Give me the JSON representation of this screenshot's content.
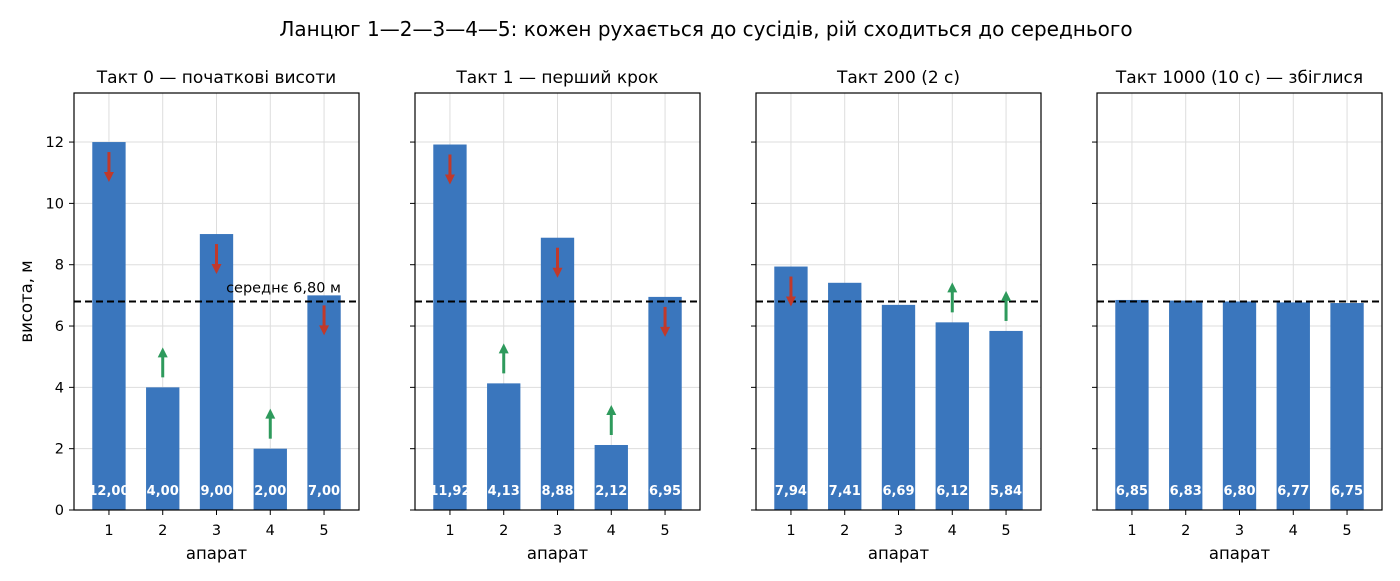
{
  "figure_title": "Ланцюг 1—2—3—4—5: кожен рухається до сусідів, рій сходиться до середнього",
  "colors": {
    "bar": "#3a76bd",
    "up_arrow": "#2e9a5c",
    "down_arrow": "#c0392b",
    "grid": "#dddddd",
    "mean_line": "#000000"
  },
  "chart_data": [
    {
      "type": "bar",
      "title": "Такт 0 — початкові висоти",
      "categories": [
        "1",
        "2",
        "3",
        "4",
        "5"
      ],
      "values": [
        12.0,
        4.0,
        9.0,
        2.0,
        7.0
      ],
      "value_labels": [
        "12,00",
        "4,00",
        "9,00",
        "2,00",
        "7,00"
      ],
      "arrows": [
        "down",
        "up",
        "down",
        "up",
        "down"
      ],
      "xlabel": "апарат",
      "ylabel": "висота, м",
      "ylim": [
        0,
        13.6
      ],
      "yticks": [
        0,
        2,
        4,
        6,
        8,
        10,
        12
      ],
      "mean": 6.8,
      "mean_label": "середнє 6,80 м",
      "grid": true
    },
    {
      "type": "bar",
      "title": "Такт 1 — перший крок",
      "categories": [
        "1",
        "2",
        "3",
        "4",
        "5"
      ],
      "values": [
        11.92,
        4.13,
        8.88,
        2.12,
        6.95
      ],
      "value_labels": [
        "11,92",
        "4,13",
        "8,88",
        "2,12",
        "6,95"
      ],
      "arrows": [
        "down",
        "up",
        "down",
        "up",
        "down"
      ],
      "xlabel": "апарат",
      "ylabel": "",
      "ylim": [
        0,
        13.6
      ],
      "yticks": [
        0,
        2,
        4,
        6,
        8,
        10,
        12
      ],
      "mean": 6.8,
      "mean_label": "",
      "grid": true
    },
    {
      "type": "bar",
      "title": "Такт 200 (2 с)",
      "categories": [
        "1",
        "2",
        "3",
        "4",
        "5"
      ],
      "values": [
        7.94,
        7.41,
        6.69,
        6.12,
        5.84
      ],
      "value_labels": [
        "7,94",
        "7,41",
        "6,69",
        "6,12",
        "5,84"
      ],
      "arrows": [
        "down",
        "",
        "",
        "up",
        "up"
      ],
      "xlabel": "апарат",
      "ylabel": "",
      "ylim": [
        0,
        13.6
      ],
      "yticks": [
        0,
        2,
        4,
        6,
        8,
        10,
        12
      ],
      "mean": 6.8,
      "mean_label": "",
      "grid": true
    },
    {
      "type": "bar",
      "title": "Такт 1000 (10 с) — збіглися",
      "categories": [
        "1",
        "2",
        "3",
        "4",
        "5"
      ],
      "values": [
        6.85,
        6.83,
        6.8,
        6.77,
        6.75
      ],
      "value_labels": [
        "6,85",
        "6,83",
        "6,80",
        "6,77",
        "6,75"
      ],
      "arrows": [
        "",
        "",
        "",
        "",
        ""
      ],
      "xlabel": "апарат",
      "ylabel": "",
      "ylim": [
        0,
        13.6
      ],
      "yticks": [
        0,
        2,
        4,
        6,
        8,
        10,
        12
      ],
      "mean": 6.8,
      "mean_label": "",
      "grid": true
    }
  ]
}
